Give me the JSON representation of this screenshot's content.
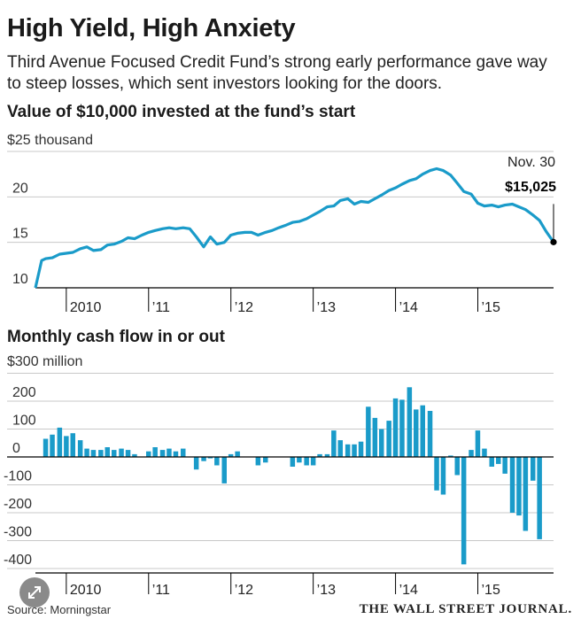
{
  "headline": "High Yield, High Anxiety",
  "dek": "Third Avenue Focused Credit Fund’s strong early performance gave way to steep losses, which sent investors looking for the doors.",
  "source": "Source: Morningstar",
  "publisher": "THE WALL STREET JOURNAL.",
  "colors": {
    "series": "#1a9bc9",
    "grid": "#c8c8c8",
    "axis": "#000000"
  },
  "chart_data": [
    {
      "type": "line",
      "title": "Value of $10,000 invested at the fund’s start",
      "ylabel": "",
      "y_unit_label": "$25 thousand",
      "ylim": [
        10,
        25
      ],
      "yticks": [
        10,
        15,
        20
      ],
      "yticklabels": [
        "10",
        "15",
        "20"
      ],
      "xlim": [
        2009.625,
        2015.92
      ],
      "xticks": [
        2010,
        2011,
        2012,
        2013,
        2014,
        2015
      ],
      "xticklabels": [
        "2010",
        "’11",
        "’12",
        "’13",
        "’14",
        "’15"
      ],
      "annotation": {
        "date": "Nov. 30",
        "value_label": "$15,025",
        "x": 2015.92,
        "y": 15.03
      },
      "x": [
        2009.625,
        2009.7,
        2009.75,
        2009.83,
        2009.92,
        2010.0,
        2010.08,
        2010.17,
        2010.25,
        2010.33,
        2010.42,
        2010.5,
        2010.58,
        2010.67,
        2010.75,
        2010.83,
        2010.92,
        2011.0,
        2011.08,
        2011.17,
        2011.25,
        2011.33,
        2011.42,
        2011.5,
        2011.58,
        2011.67,
        2011.75,
        2011.83,
        2011.92,
        2012.0,
        2012.08,
        2012.17,
        2012.25,
        2012.33,
        2012.42,
        2012.5,
        2012.58,
        2012.67,
        2012.75,
        2012.83,
        2012.92,
        2013.0,
        2013.08,
        2013.17,
        2013.25,
        2013.33,
        2013.42,
        2013.5,
        2013.58,
        2013.67,
        2013.75,
        2013.83,
        2013.92,
        2014.0,
        2014.08,
        2014.17,
        2014.25,
        2014.33,
        2014.42,
        2014.5,
        2014.58,
        2014.67,
        2014.75,
        2014.83,
        2014.92,
        2015.0,
        2015.08,
        2015.17,
        2015.25,
        2015.33,
        2015.42,
        2015.5,
        2015.58,
        2015.67,
        2015.75,
        2015.83,
        2015.92
      ],
      "y": [
        10.0,
        13.0,
        13.2,
        13.3,
        13.7,
        13.8,
        13.9,
        14.3,
        14.5,
        14.1,
        14.2,
        14.7,
        14.8,
        15.1,
        15.5,
        15.4,
        15.8,
        16.1,
        16.3,
        16.5,
        16.6,
        16.5,
        16.6,
        16.5,
        15.6,
        14.5,
        15.6,
        14.8,
        15.0,
        15.8,
        16.0,
        16.1,
        16.1,
        15.8,
        16.1,
        16.3,
        16.6,
        16.9,
        17.2,
        17.3,
        17.6,
        18.0,
        18.4,
        18.9,
        19.0,
        19.6,
        19.8,
        19.2,
        19.5,
        19.4,
        19.8,
        20.2,
        20.7,
        21.0,
        21.4,
        21.8,
        22.0,
        22.5,
        22.9,
        23.1,
        22.9,
        22.4,
        21.5,
        20.6,
        20.3,
        19.3,
        19.0,
        19.1,
        18.9,
        19.1,
        19.2,
        18.9,
        18.6,
        18.0,
        17.4,
        16.2,
        15.03
      ]
    },
    {
      "type": "bar",
      "title": "Monthly cash flow in or out",
      "ylabel": "",
      "y_unit_label": "$300 million",
      "ylim": [
        -400,
        300
      ],
      "yticks": [
        -400,
        -300,
        -200,
        -100,
        0,
        100,
        200
      ],
      "yticklabels": [
        "-400",
        "-300",
        "-200",
        "-100",
        "0",
        "100",
        "200"
      ],
      "xlim": [
        2009.625,
        2015.92
      ],
      "xticks": [
        2010,
        2011,
        2012,
        2013,
        2014,
        2015
      ],
      "xticklabels": [
        "2010",
        "’11",
        "’12",
        "’13",
        "’14",
        "’15"
      ],
      "x": [
        2009.75,
        2009.83,
        2009.92,
        2010.0,
        2010.08,
        2010.17,
        2010.25,
        2010.33,
        2010.42,
        2010.5,
        2010.58,
        2010.67,
        2010.75,
        2010.83,
        2010.92,
        2011.0,
        2011.08,
        2011.17,
        2011.25,
        2011.33,
        2011.42,
        2011.5,
        2011.58,
        2011.67,
        2011.75,
        2011.83,
        2011.92,
        2012.0,
        2012.08,
        2012.17,
        2012.25,
        2012.33,
        2012.42,
        2012.5,
        2012.58,
        2012.67,
        2012.75,
        2012.83,
        2012.92,
        2013.0,
        2013.08,
        2013.17,
        2013.25,
        2013.33,
        2013.42,
        2013.5,
        2013.58,
        2013.67,
        2013.75,
        2013.83,
        2013.92,
        2014.0,
        2014.08,
        2014.17,
        2014.25,
        2014.33,
        2014.42,
        2014.5,
        2014.58,
        2014.67,
        2014.75,
        2014.83,
        2014.92,
        2015.0,
        2015.08,
        2015.17,
        2015.25,
        2015.33,
        2015.42,
        2015.5,
        2015.58,
        2015.67,
        2015.75,
        2015.83,
        2015.92
      ],
      "values": [
        65,
        80,
        105,
        75,
        85,
        60,
        30,
        25,
        25,
        35,
        25,
        30,
        25,
        10,
        0,
        20,
        35,
        25,
        30,
        20,
        30,
        0,
        -45,
        -15,
        -5,
        -30,
        -95,
        10,
        20,
        0,
        0,
        -30,
        -20,
        0,
        0,
        0,
        -35,
        -20,
        -30,
        -30,
        10,
        10,
        95,
        60,
        45,
        45,
        55,
        180,
        140,
        100,
        130,
        210,
        205,
        250,
        170,
        185,
        165,
        -120,
        -135,
        5,
        -65,
        -385,
        25,
        95,
        30,
        -35,
        -25,
        -60,
        -200,
        -210,
        -265,
        -85,
        -295,
        0,
        0
      ]
    }
  ]
}
